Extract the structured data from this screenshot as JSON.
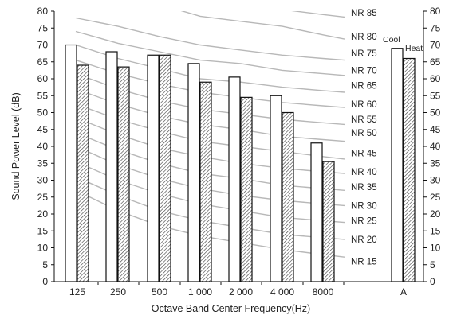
{
  "chart_data": {
    "type": "bar",
    "xlabel": "Octave Band Center Frequency(Hz)",
    "ylabel": "Sound Power Level (dB)",
    "ylim": [
      0,
      80
    ],
    "yticks": [
      0,
      5,
      10,
      15,
      20,
      25,
      30,
      35,
      40,
      45,
      50,
      55,
      60,
      65,
      70,
      75,
      80
    ],
    "categories": [
      "125",
      "250",
      "500",
      "1000",
      "2000",
      "4000",
      "8000",
      "A"
    ],
    "category_labels": [
      "125",
      "250",
      "500",
      "1 000",
      "2 000",
      "4 000",
      "8000",
      "A"
    ],
    "series": [
      {
        "name": "Cool",
        "values": [
          70,
          68,
          67,
          64.5,
          60.5,
          55,
          41,
          69
        ],
        "fill": "white"
      },
      {
        "name": "Heat",
        "values": [
          64,
          63.5,
          67,
          59,
          54.5,
          50,
          35.5,
          66
        ],
        "fill": "hatched"
      }
    ],
    "nr_curves": [
      {
        "label": "NR 85",
        "values": [
          null,
          null,
          87.5,
          84,
          82,
          80.5,
          79
        ]
      },
      {
        "label": "NR 80",
        "values": [
          null,
          86,
          82,
          78.5,
          77,
          75.5,
          73
        ]
      },
      {
        "label": "NR 75",
        "values": [
          78,
          75.5,
          72.5,
          70,
          68.5,
          67,
          66
        ]
      },
      {
        "label": "NR 70",
        "values": [
          74,
          70.5,
          68,
          65.5,
          64.5,
          62.5,
          61.5
        ]
      },
      {
        "label": "NR 65",
        "values": [
          70,
          66,
          63,
          60,
          59,
          57.5,
          56.5
        ]
      },
      {
        "label": "NR 60",
        "values": [
          65.5,
          61.5,
          58.5,
          56,
          54.5,
          53,
          52
        ]
      },
      {
        "label": "NR 55",
        "values": [
          61.5,
          57,
          53.5,
          51,
          49.5,
          48,
          47
        ]
      },
      {
        "label": "NR 50",
        "values": [
          57,
          52.5,
          49,
          46.5,
          45,
          43,
          42
        ]
      },
      {
        "label": "NR 45",
        "values": [
          52.5,
          48,
          44.5,
          41.5,
          40,
          38.5,
          37
        ]
      },
      {
        "label": "NR 40",
        "values": [
          48.5,
          43.5,
          39.5,
          37,
          35,
          33.5,
          32.5
        ]
      },
      {
        "label": "NR 35",
        "values": [
          44,
          39,
          35,
          32,
          30.5,
          28.5,
          27.5
        ]
      },
      {
        "label": "NR 30",
        "values": [
          40,
          34.5,
          30.5,
          27.5,
          25.5,
          24,
          23
        ]
      },
      {
        "label": "NR 25",
        "values": [
          35.5,
          30,
          26,
          23,
          21,
          19,
          18
        ]
      },
      {
        "label": "NR 20",
        "values": [
          31,
          25.5,
          21,
          18,
          16,
          14,
          13
        ]
      },
      {
        "label": "NR 15",
        "values": [
          27,
          21,
          16.5,
          13.5,
          11.5,
          9.5,
          8
        ]
      }
    ],
    "nr_label_values": [
      79.5,
      72.5,
      67.5,
      62.5,
      58,
      52.5,
      48,
      44,
      38,
      32.5,
      28,
      22.5,
      18,
      12.5,
      6
    ],
    "grid": false,
    "legend": "inline labels above A bars"
  },
  "colors": {
    "curve": "#b8b8b8",
    "bar_border": "#111111",
    "hatch": "#555555"
  }
}
